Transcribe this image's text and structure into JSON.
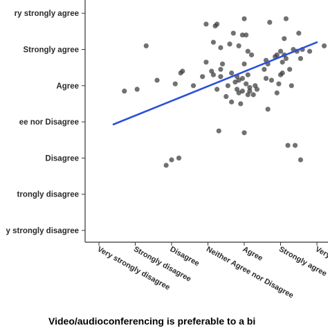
{
  "chart_data": {
    "type": "scatter",
    "title": "",
    "xlabel": "Video/audioconferencing is preferable to a bi",
    "ylabel": "",
    "x_levels": [
      "Very strongly disagree",
      "Strongly disagree",
      "Disagree",
      "Neither Agree nor Disagree",
      "Agree",
      "Strongly agree",
      "Very strongly agree"
    ],
    "y_levels": [
      "Very strongly disagree",
      "Strongly disagree",
      "Disagree",
      "Neither Agree nor Disagree",
      "Agree",
      "Strongly agree",
      "Very strongly agree"
    ],
    "x_tick_labels_shown": [
      "Very strongly disagree",
      "Strongly disagree",
      "Disagree",
      "Neither Agree nor Disagree",
      "Agree",
      "Strongly agree",
      "Very"
    ],
    "y_tick_labels_shown": [
      "ry strongly agree",
      "Strongly agree",
      "Agree",
      "ee nor Disagree",
      "Disagree",
      "trongly disagree",
      "y strongly disagree"
    ],
    "xlim": [
      0.6,
      7.4
    ],
    "ylim": [
      0.7,
      7.3
    ],
    "grid": false,
    "legend": "none",
    "points": [
      {
        "x": 1.7,
        "y": 4.85
      },
      {
        "x": 2.05,
        "y": 4.9
      },
      {
        "x": 2.3,
        "y": 6.1
      },
      {
        "x": 2.6,
        "y": 5.15
      },
      {
        "x": 2.85,
        "y": 2.8
      },
      {
        "x": 3.0,
        "y": 2.95
      },
      {
        "x": 3.1,
        "y": 5.05
      },
      {
        "x": 3.2,
        "y": 3.0
      },
      {
        "x": 3.25,
        "y": 5.35
      },
      {
        "x": 3.3,
        "y": 5.4
      },
      {
        "x": 3.6,
        "y": 5.0
      },
      {
        "x": 3.85,
        "y": 5.25
      },
      {
        "x": 3.95,
        "y": 5.65
      },
      {
        "x": 3.95,
        "y": 6.7
      },
      {
        "x": 4.1,
        "y": 5.4
      },
      {
        "x": 4.15,
        "y": 5.3
      },
      {
        "x": 4.15,
        "y": 6.2
      },
      {
        "x": 4.2,
        "y": 6.65
      },
      {
        "x": 4.25,
        "y": 6.7
      },
      {
        "x": 4.25,
        "y": 4.9
      },
      {
        "x": 4.3,
        "y": 3.75
      },
      {
        "x": 4.35,
        "y": 5.25
      },
      {
        "x": 4.35,
        "y": 5.45
      },
      {
        "x": 4.35,
        "y": 6.05
      },
      {
        "x": 4.4,
        "y": 5.6
      },
      {
        "x": 4.5,
        "y": 4.7
      },
      {
        "x": 4.55,
        "y": 5.0
      },
      {
        "x": 4.6,
        "y": 6.15
      },
      {
        "x": 4.65,
        "y": 5.35
      },
      {
        "x": 4.65,
        "y": 4.55
      },
      {
        "x": 4.7,
        "y": 6.45
      },
      {
        "x": 4.75,
        "y": 5.1
      },
      {
        "x": 4.8,
        "y": 5.25
      },
      {
        "x": 4.8,
        "y": 4.9
      },
      {
        "x": 4.85,
        "y": 6.1
      },
      {
        "x": 4.85,
        "y": 4.8
      },
      {
        "x": 4.85,
        "y": 5.15
      },
      {
        "x": 4.9,
        "y": 4.5
      },
      {
        "x": 4.95,
        "y": 5.2
      },
      {
        "x": 4.95,
        "y": 4.85
      },
      {
        "x": 4.95,
        "y": 6.4
      },
      {
        "x": 5.0,
        "y": 5.6
      },
      {
        "x": 5.0,
        "y": 3.7
      },
      {
        "x": 5.0,
        "y": 6.85
      },
      {
        "x": 5.05,
        "y": 5.05
      },
      {
        "x": 5.05,
        "y": 6.4
      },
      {
        "x": 5.1,
        "y": 5.95
      },
      {
        "x": 5.1,
        "y": 4.75
      },
      {
        "x": 5.1,
        "y": 5.3
      },
      {
        "x": 5.15,
        "y": 4.85
      },
      {
        "x": 5.15,
        "y": 4.95
      },
      {
        "x": 5.2,
        "y": 5.85
      },
      {
        "x": 5.25,
        "y": 4.75
      },
      {
        "x": 5.3,
        "y": 5.0
      },
      {
        "x": 5.35,
        "y": 4.9
      },
      {
        "x": 5.55,
        "y": 5.45
      },
      {
        "x": 5.6,
        "y": 5.7
      },
      {
        "x": 5.6,
        "y": 5.2
      },
      {
        "x": 5.65,
        "y": 5.6
      },
      {
        "x": 5.65,
        "y": 4.35
      },
      {
        "x": 5.7,
        "y": 6.75
      },
      {
        "x": 5.75,
        "y": 5.15
      },
      {
        "x": 5.85,
        "y": 5.8
      },
      {
        "x": 5.9,
        "y": 5.85
      },
      {
        "x": 5.9,
        "y": 4.8
      },
      {
        "x": 5.95,
        "y": 5.05
      },
      {
        "x": 6.0,
        "y": 5.3
      },
      {
        "x": 6.0,
        "y": 5.95
      },
      {
        "x": 6.05,
        "y": 5.35
      },
      {
        "x": 6.05,
        "y": 5.65
      },
      {
        "x": 6.1,
        "y": 6.3
      },
      {
        "x": 6.1,
        "y": 5.85
      },
      {
        "x": 6.15,
        "y": 6.85
      },
      {
        "x": 6.15,
        "y": 5.75
      },
      {
        "x": 6.2,
        "y": 3.35
      },
      {
        "x": 6.25,
        "y": 5.45
      },
      {
        "x": 6.3,
        "y": 5.0
      },
      {
        "x": 6.35,
        "y": 6.0
      },
      {
        "x": 6.4,
        "y": 3.35
      },
      {
        "x": 6.45,
        "y": 5.95
      },
      {
        "x": 6.5,
        "y": 6.45
      },
      {
        "x": 6.55,
        "y": 5.75
      },
      {
        "x": 6.55,
        "y": 2.95
      },
      {
        "x": 6.6,
        "y": 6.0
      },
      {
        "x": 6.8,
        "y": 5.95
      },
      {
        "x": 7.2,
        "y": 6.1
      }
    ],
    "trend_line": {
      "x": [
        1.4,
        7.0
      ],
      "y": [
        3.93,
        6.2
      ],
      "color": "#2a4fdc"
    },
    "point_color": "#3a3a3a"
  }
}
